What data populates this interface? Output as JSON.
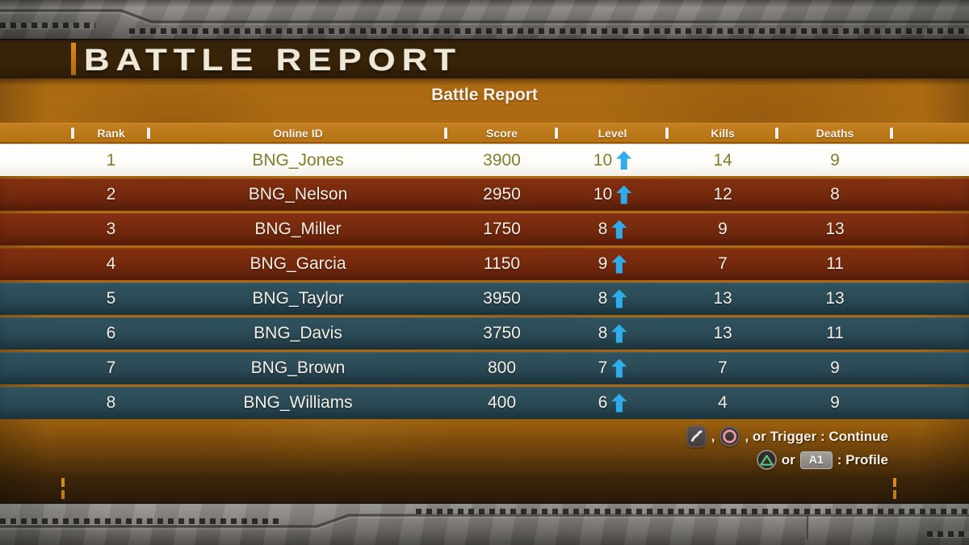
{
  "header": {
    "title": "BATTLE REPORT"
  },
  "subtitle": "Battle Report",
  "table": {
    "columns": [
      "Rank",
      "Online ID",
      "Score",
      "Level",
      "Kills",
      "Deaths"
    ],
    "rows": [
      {
        "rank": "1",
        "online_id": "BNG_Jones",
        "score": "3900",
        "level": "10",
        "kills": "14",
        "deaths": "9",
        "team": "red",
        "selected": true
      },
      {
        "rank": "2",
        "online_id": "BNG_Nelson",
        "score": "2950",
        "level": "10",
        "kills": "12",
        "deaths": "8",
        "team": "red",
        "selected": false
      },
      {
        "rank": "3",
        "online_id": "BNG_Miller",
        "score": "1750",
        "level": "8",
        "kills": "9",
        "deaths": "13",
        "team": "red",
        "selected": false
      },
      {
        "rank": "4",
        "online_id": "BNG_Garcia",
        "score": "1150",
        "level": "9",
        "kills": "7",
        "deaths": "11",
        "team": "red",
        "selected": false
      },
      {
        "rank": "5",
        "online_id": "BNG_Taylor",
        "score": "3950",
        "level": "8",
        "kills": "13",
        "deaths": "13",
        "team": "blue",
        "selected": false
      },
      {
        "rank": "6",
        "online_id": "BNG_Davis",
        "score": "3750",
        "level": "8",
        "kills": "13",
        "deaths": "11",
        "team": "blue",
        "selected": false
      },
      {
        "rank": "7",
        "online_id": "BNG_Brown",
        "score": "800",
        "level": "7",
        "kills": "7",
        "deaths": "9",
        "team": "blue",
        "selected": false
      },
      {
        "rank": "8",
        "online_id": "BNG_Williams",
        "score": "400",
        "level": "6",
        "kills": "4",
        "deaths": "9",
        "team": "blue",
        "selected": false
      }
    ]
  },
  "hints": {
    "continue": {
      "comma": ",",
      "rest": ", or Trigger : Continue"
    },
    "profile": {
      "or": "or",
      "badge": "A1",
      "rest": ": Profile"
    }
  },
  "icons": {
    "level_trend": "up-arrow",
    "continue_button_1": "analog-stick-flick",
    "continue_button_2": "circle-button",
    "profile_button": "triangle-button"
  },
  "colors": {
    "background_orange": "#ab6a10",
    "header_orange": "#bd7a1e",
    "row_red_team": "#762a0e",
    "row_blue_team": "#2b4b57",
    "selected_row": "#ffffff",
    "selected_text_olive": "#847c2b",
    "level_arrow_blue": "#2eadea",
    "title_cream": "#efe8d6",
    "triangle_green": "#55cf82",
    "circle_pink": "#e294a4"
  }
}
